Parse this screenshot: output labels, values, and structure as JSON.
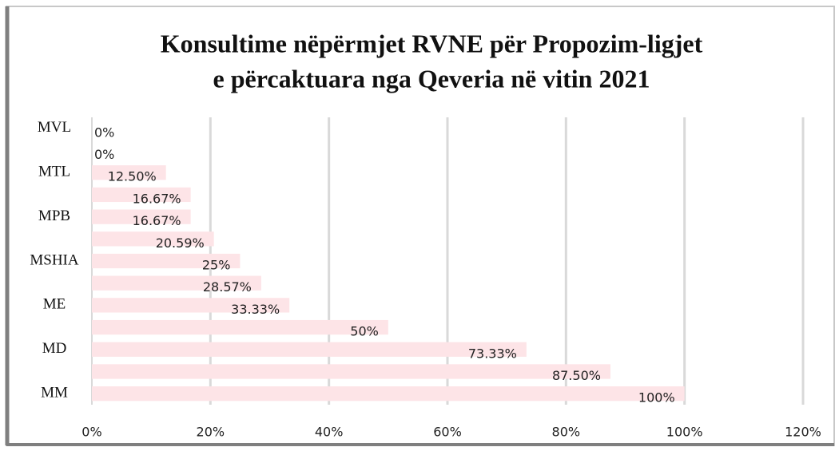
{
  "chart_data": {
    "type": "hbar",
    "title": [
      "Konsultime nëpërmjet RVNE për Propozim-ligjet",
      "e përcaktuara nga Qeveria në vitin 2021"
    ],
    "categories": [
      "MVL",
      null,
      "MTL",
      null,
      "MPB",
      null,
      "MSHIA",
      null,
      "ME",
      null,
      "MD",
      null,
      "MM"
    ],
    "values": [
      0,
      0,
      12.5,
      16.67,
      16.67,
      20.59,
      25,
      28.57,
      33.33,
      50,
      73.33,
      87.5,
      100
    ],
    "value_labels": [
      "0%",
      "0%",
      "12.50%",
      "16.67%",
      "16.67%",
      "20.59%",
      "25%",
      "28.57%",
      "33.33%",
      "50%",
      "73.33%",
      "87.50%",
      "100%"
    ],
    "color": "#fde4e7",
    "xlim": [
      0,
      120
    ],
    "xticks": [
      {
        "value": 0,
        "label": "0%"
      },
      {
        "value": 20,
        "label": "20%"
      },
      {
        "value": 40,
        "label": "40%"
      },
      {
        "value": 60,
        "label": "60%"
      },
      {
        "value": 80,
        "label": "80%"
      },
      {
        "value": 100,
        "label": "100%"
      },
      {
        "value": 120,
        "label": "120%"
      }
    ],
    "grid": true
  }
}
